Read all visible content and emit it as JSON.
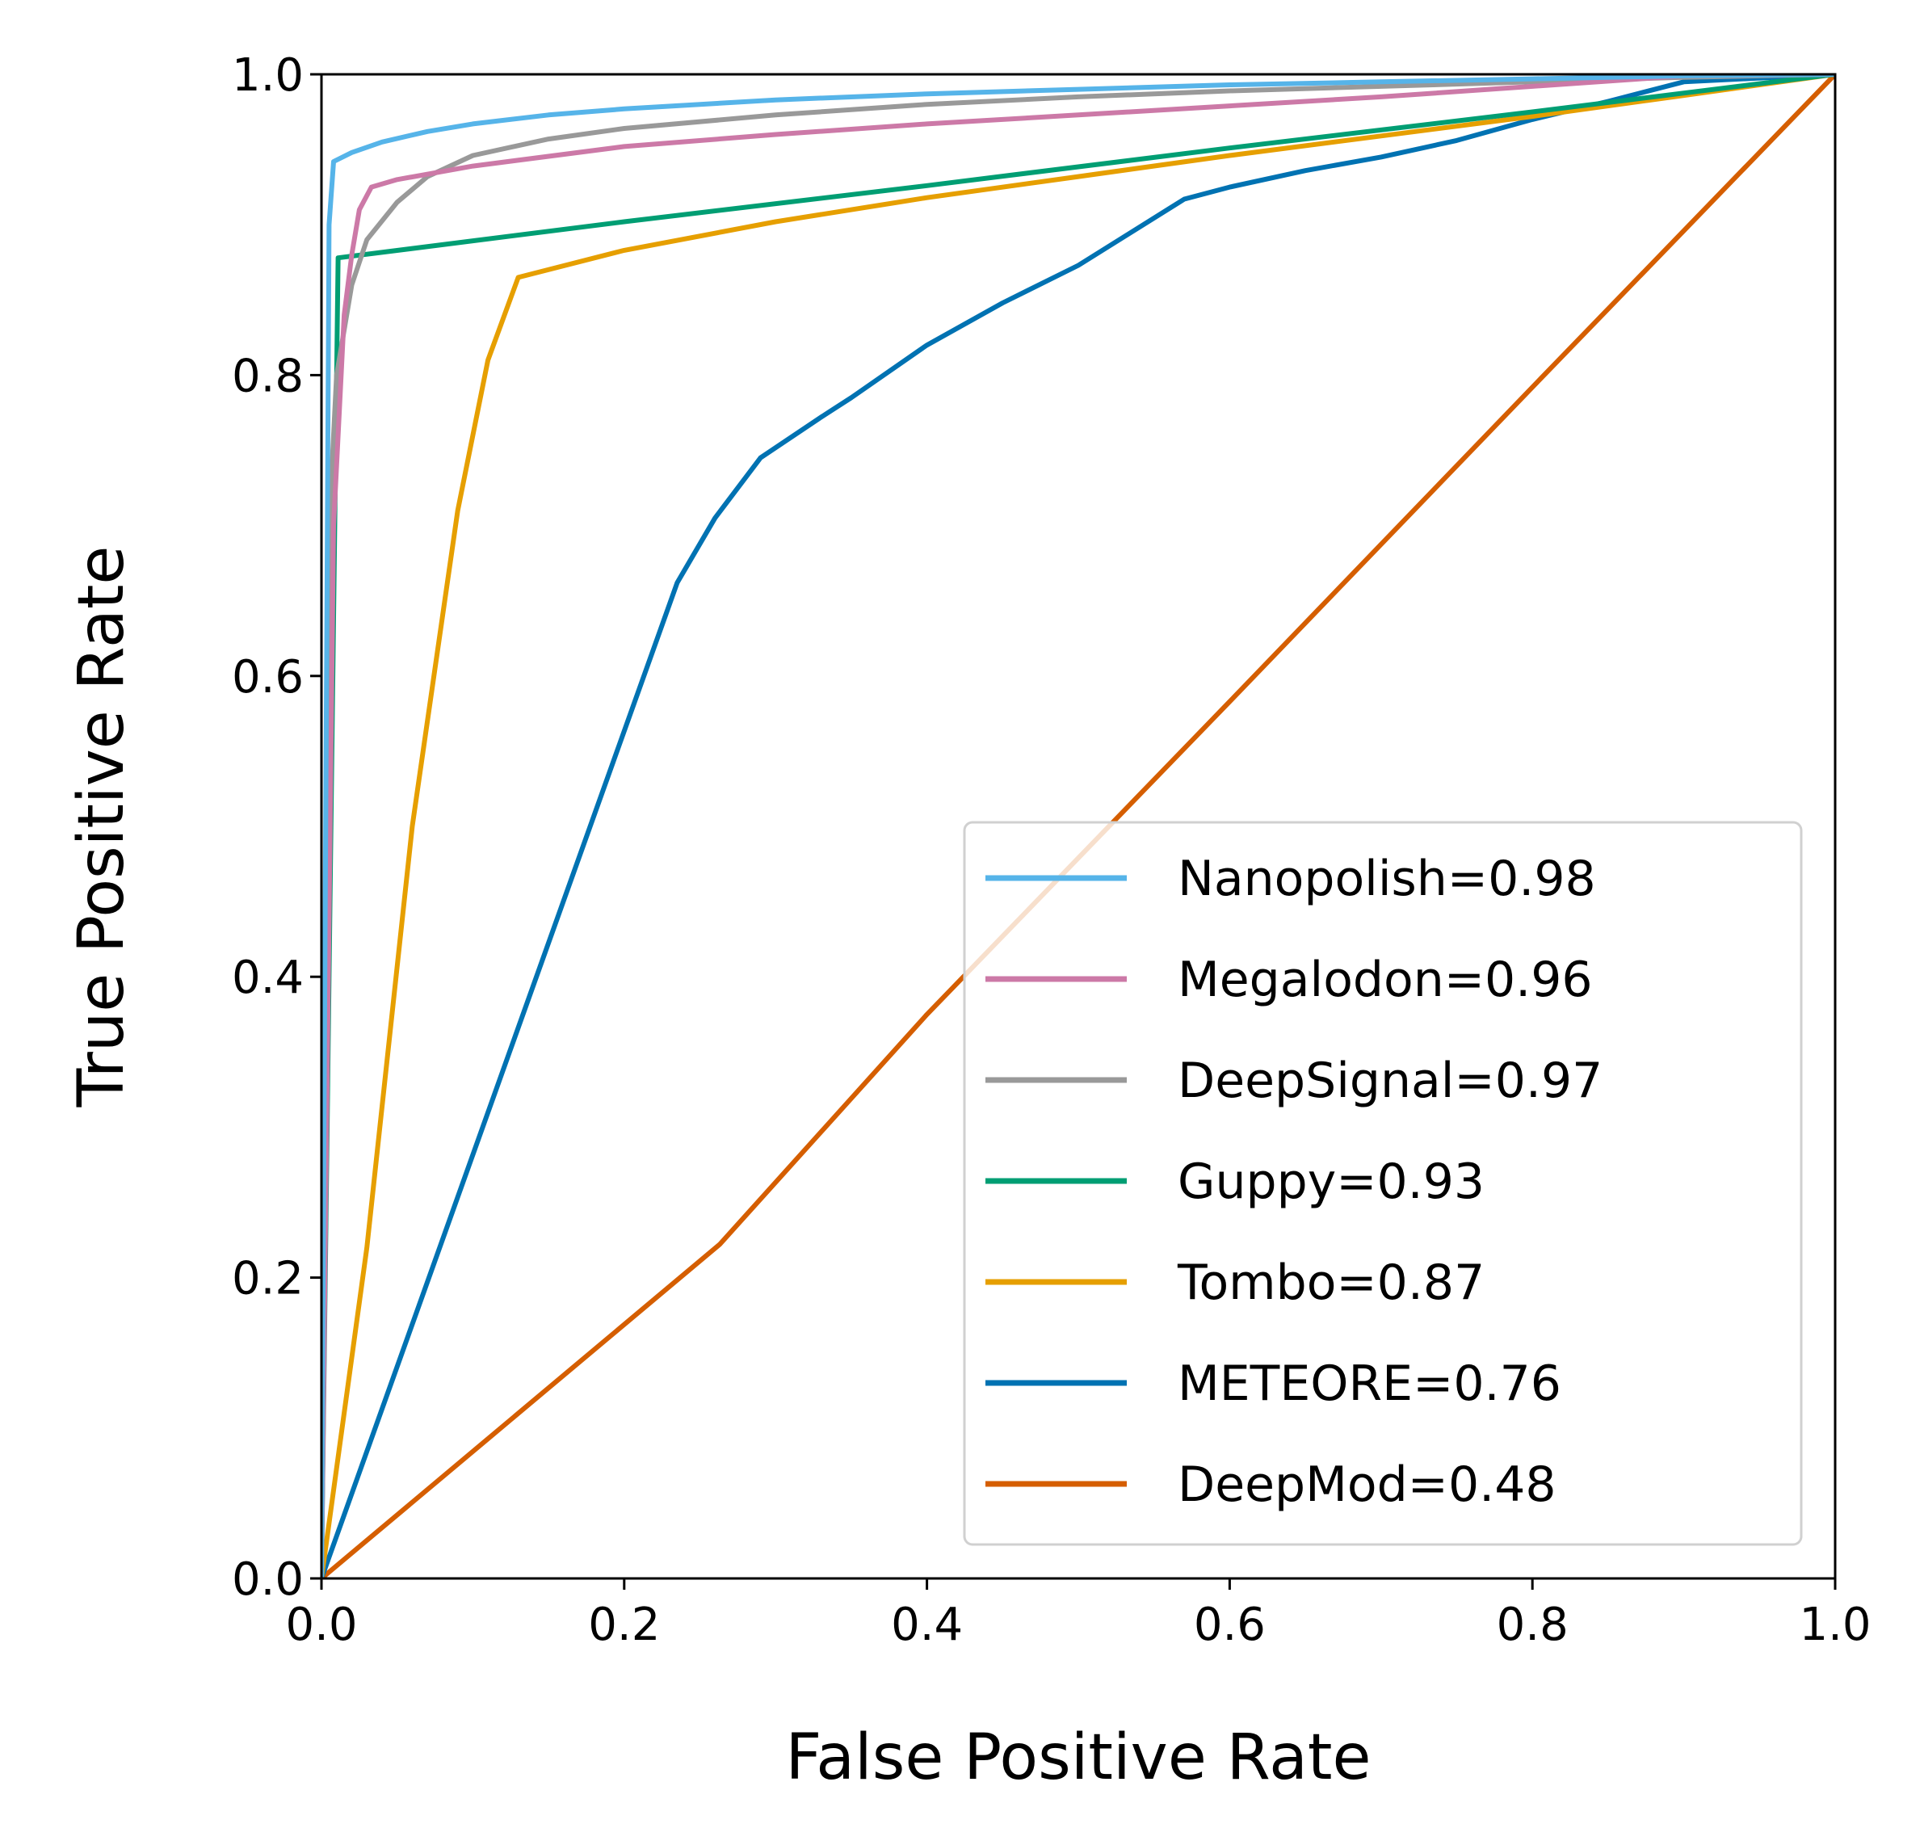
{
  "chart_data": {
    "type": "line",
    "title": "",
    "xlabel": "False Positive Rate",
    "ylabel": "True Positive Rate",
    "xlim": [
      0.0,
      1.0
    ],
    "ylim": [
      0.0,
      1.0
    ],
    "grid": false,
    "legend_position": "lower-right",
    "x_ticks": [
      "0.0",
      "0.2",
      "0.4",
      "0.6",
      "0.8",
      "1.0"
    ],
    "y_ticks": [
      "0.0",
      "0.2",
      "0.4",
      "0.6",
      "0.8",
      "1.0"
    ],
    "series": [
      {
        "name": "Nanopolish=0.98",
        "color": "#56B4E9",
        "x": [
          0,
          0.005,
          0.008,
          0.02,
          0.04,
          0.07,
          0.1,
          0.15,
          0.2,
          0.3,
          0.4,
          0.5,
          0.6,
          0.7,
          0.8,
          0.9,
          1.0
        ],
        "y": [
          0,
          0.9,
          0.942,
          0.948,
          0.955,
          0.962,
          0.967,
          0.973,
          0.977,
          0.983,
          0.987,
          0.99,
          0.993,
          0.995,
          0.997,
          0.999,
          1.0
        ]
      },
      {
        "name": "Megalodon=0.96",
        "color": "#CC79A7",
        "x": [
          0,
          0.008,
          0.015,
          0.02,
          0.025,
          0.033,
          0.05,
          0.1,
          0.2,
          0.3,
          0.4,
          0.5,
          0.6,
          0.7,
          0.8,
          0.9,
          1.0
        ],
        "y": [
          0,
          0.7,
          0.84,
          0.88,
          0.91,
          0.925,
          0.93,
          0.939,
          0.952,
          0.96,
          0.967,
          0.973,
          0.979,
          0.985,
          0.992,
          0.999,
          1.0
        ]
      },
      {
        "name": "DeepSignal=0.97",
        "color": "#999999",
        "x": [
          0,
          0.005,
          0.01,
          0.02,
          0.03,
          0.05,
          0.07,
          0.1,
          0.15,
          0.2,
          0.3,
          0.4,
          0.5,
          0.6,
          0.7,
          0.8,
          0.9,
          1.0
        ],
        "y": [
          0,
          0.7,
          0.8,
          0.86,
          0.89,
          0.915,
          0.932,
          0.946,
          0.957,
          0.964,
          0.973,
          0.98,
          0.985,
          0.989,
          0.992,
          0.995,
          0.998,
          1.0
        ]
      },
      {
        "name": "Guppy=0.93",
        "color": "#009E73",
        "x": [
          0,
          0.011,
          0.2,
          0.4,
          0.6,
          0.8,
          1.0
        ],
        "y": [
          0,
          0.878,
          0.902,
          0.926,
          0.951,
          0.975,
          1.0
        ]
      },
      {
        "name": "Tombo=0.87",
        "color": "#E69F00",
        "x": [
          0,
          0.03,
          0.06,
          0.09,
          0.11,
          0.13,
          0.2,
          0.3,
          0.4,
          0.5,
          0.6,
          0.7,
          0.8,
          0.9,
          1.0
        ],
        "y": [
          0,
          0.22,
          0.5,
          0.71,
          0.81,
          0.865,
          0.883,
          0.902,
          0.918,
          0.932,
          0.946,
          0.959,
          0.972,
          0.986,
          1.0
        ]
      },
      {
        "name": "METEORE=0.76",
        "color": "#0072B2",
        "x": [
          0,
          0.235,
          0.26,
          0.29,
          0.33,
          0.35,
          0.4,
          0.45,
          0.5,
          0.57,
          0.6,
          0.65,
          0.7,
          0.75,
          0.8,
          0.85,
          0.9,
          1.0
        ],
        "y": [
          0,
          0.662,
          0.705,
          0.745,
          0.772,
          0.785,
          0.82,
          0.848,
          0.873,
          0.917,
          0.925,
          0.936,
          0.945,
          0.956,
          0.97,
          0.982,
          0.995,
          1.0
        ]
      },
      {
        "name": "DeepMod=0.48",
        "color": "#D55E00",
        "x": [
          0,
          0.263,
          0.4,
          0.6,
          0.8,
          1.0
        ],
        "y": [
          0,
          0.222,
          0.375,
          0.583,
          0.792,
          1.0
        ]
      }
    ]
  }
}
